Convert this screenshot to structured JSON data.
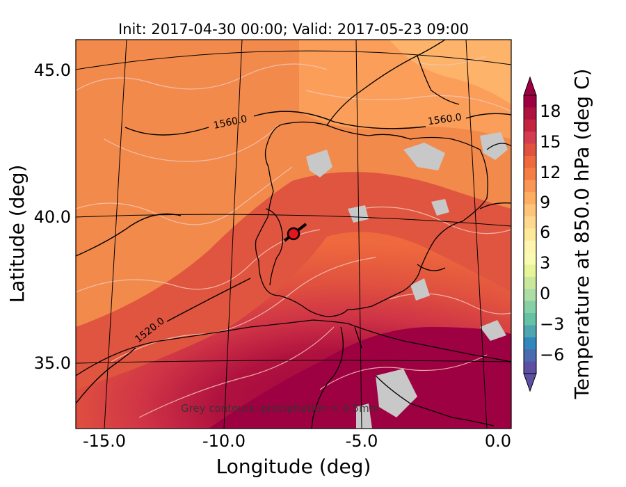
{
  "title": "Init: 2017-04-30 00:00; Valid: 2017-05-23 09:00",
  "axes": {
    "xlabel": "Longitude (deg)",
    "ylabel": "Latitude (deg)",
    "xticks": [
      "-15.0",
      "-10.0",
      "-5.0",
      "0.0"
    ],
    "yticks": [
      "45.0",
      "40.0",
      "35.0"
    ]
  },
  "colorbar": {
    "label": "Temperature at 850.0 hPa (deg C)",
    "ticks": [
      "18",
      "15",
      "12",
      "9",
      "6",
      "3",
      "0",
      "−3",
      "−6"
    ],
    "levels": [
      {
        "color": "#9e0142"
      },
      {
        "color": "#b0123f"
      },
      {
        "color": "#c4243f"
      },
      {
        "color": "#d43d4f"
      },
      {
        "color": "#e0513f"
      },
      {
        "color": "#ee6a3e"
      },
      {
        "color": "#f57e44"
      },
      {
        "color": "#fa9656"
      },
      {
        "color": "#fdae61"
      },
      {
        "color": "#fdc47a"
      },
      {
        "color": "#fed88f"
      },
      {
        "color": "#fee89a"
      },
      {
        "color": "#fff5b0"
      },
      {
        "color": "#f8fbb0"
      },
      {
        "color": "#e6f598"
      },
      {
        "color": "#c9e89e"
      },
      {
        "color": "#abdda4"
      },
      {
        "color": "#87cfa4"
      },
      {
        "color": "#66c2a5"
      },
      {
        "color": "#4ea7b0"
      },
      {
        "color": "#3288bd"
      },
      {
        "color": "#4a6bb0"
      },
      {
        "color": "#5e4fa2"
      }
    ]
  },
  "contour_labels": [
    "1560.0",
    "1560.0",
    "1520.0"
  ],
  "annotation": "Grey contours: precipitation > 0.5mm",
  "marker": {
    "lon": -7.6,
    "lat": 39.3,
    "color": "#e8141d"
  }
}
